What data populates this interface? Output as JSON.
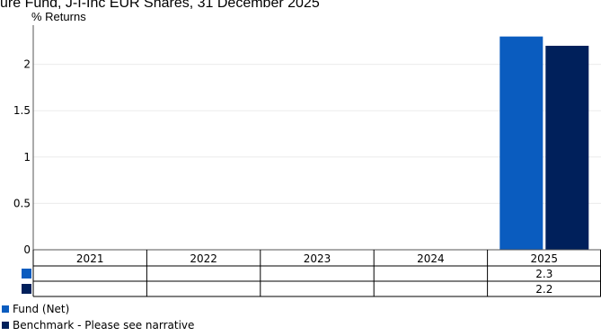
{
  "chart_data": {
    "type": "bar",
    "title": "ure Fund, J-I-Inc EUR Shares, 31 December 2025",
    "ylabel": "% Returns",
    "xlabel": "",
    "categories": [
      "2021",
      "2022",
      "2023",
      "2024",
      "2025"
    ],
    "ylim": [
      0,
      2.5
    ],
    "yticks": [
      "0",
      "0.5",
      "1",
      "1.5",
      "2"
    ],
    "grid": true,
    "legend_position": "bottom-left",
    "series": [
      {
        "name": "Fund (Net)",
        "color": "#0a5cbf",
        "values": [
          null,
          null,
          null,
          null,
          2.3
        ],
        "labels": [
          "",
          "",
          "",
          "",
          "2.3"
        ]
      },
      {
        "name": "Benchmark - Please see narrative",
        "color": "#00205b",
        "values": [
          null,
          null,
          null,
          null,
          2.2
        ],
        "labels": [
          "",
          "",
          "",
          "",
          "2.2"
        ]
      }
    ]
  }
}
